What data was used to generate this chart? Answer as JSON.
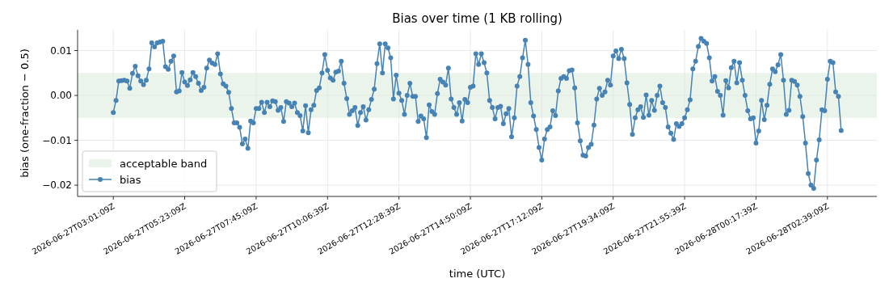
{
  "chart_data": {
    "type": "line",
    "title": "Bias over time (1 KB rolling)",
    "xlabel": "time (UTC)",
    "ylabel": "bias (one-fraction − 0.5)",
    "categories": [
      "2026-06-27T03:01:09Z",
      null,
      null,
      null,
      null,
      null,
      null,
      null,
      null,
      null,
      null,
      null,
      null,
      null,
      null,
      null,
      null,
      null,
      null,
      null,
      null,
      null,
      null,
      null,
      null,
      null,
      "2026-06-27T05:23:09Z",
      null,
      null,
      null,
      null,
      null,
      null,
      null,
      null,
      null,
      null,
      null,
      null,
      null,
      null,
      null,
      null,
      null,
      null,
      null,
      null,
      null,
      null,
      null,
      null,
      null,
      "2026-06-27T07:45:09Z",
      null,
      null,
      null,
      null,
      null,
      null,
      null,
      null,
      null,
      null,
      null,
      null,
      null,
      null,
      null,
      null,
      null,
      null,
      null,
      null,
      null,
      null,
      null,
      null,
      null,
      "2026-06-27T10:06:39Z",
      null,
      null,
      null,
      null,
      null,
      null,
      null,
      null,
      null,
      null,
      null,
      null,
      null,
      null,
      null,
      null,
      null,
      null,
      null,
      null,
      null,
      null,
      null,
      null,
      null,
      "2026-06-27T12:28:39Z",
      null,
      null,
      null,
      null,
      null,
      null,
      null,
      null,
      null,
      null,
      null,
      null,
      null,
      null,
      null,
      null,
      null,
      null,
      null,
      null,
      null,
      null,
      null,
      null,
      null,
      "2026-06-27T14:50:09Z",
      null,
      null,
      null,
      null,
      null,
      null,
      null,
      null,
      null,
      null,
      null,
      null,
      null,
      null,
      null,
      null,
      null,
      null,
      null,
      null,
      null,
      null,
      null,
      null,
      null,
      "2026-06-27T17:12:09Z",
      null,
      null,
      null,
      null,
      null,
      null,
      null,
      null,
      null,
      null,
      null,
      null,
      null,
      null,
      null,
      null,
      null,
      null,
      null,
      null,
      null,
      null,
      null,
      null,
      null,
      "2026-06-27T19:34:09Z",
      null,
      null,
      null,
      null,
      null,
      null,
      null,
      null,
      null,
      null,
      null,
      null,
      null,
      null,
      null,
      null,
      null,
      null,
      null,
      null,
      null,
      null,
      null,
      null,
      null,
      "2026-06-27T21:55:39Z",
      null,
      null,
      null,
      null,
      null,
      null,
      null,
      null,
      null,
      null,
      null,
      null,
      null,
      null,
      null,
      null,
      null,
      null,
      null,
      null,
      null,
      null,
      null,
      null,
      null,
      "2026-06-28T00:17:39Z",
      null,
      null,
      null,
      null,
      null,
      null,
      null,
      null,
      null,
      null,
      null,
      null,
      null,
      null,
      null,
      null,
      null,
      null,
      null,
      null,
      null,
      null,
      null,
      null,
      null,
      "2026-06-28T02:39:09Z",
      null,
      null,
      null,
      null,
      null
    ],
    "series": [
      {
        "name": "bias",
        "color": "#4682b4",
        "values": [
          -0.0038,
          -0.0011,
          0.0032,
          0.0033,
          0.0034,
          0.0032,
          0.0016,
          0.0049,
          0.0065,
          0.0044,
          0.0032,
          0.0024,
          0.0034,
          0.0059,
          0.0117,
          0.0108,
          0.0117,
          0.0119,
          0.0121,
          0.0064,
          0.0058,
          0.0076,
          0.0088,
          0.0008,
          0.001,
          0.0051,
          0.003,
          0.0022,
          0.0035,
          0.0051,
          0.0042,
          0.0027,
          0.0011,
          0.0018,
          0.0061,
          0.0079,
          0.0072,
          0.0069,
          0.0093,
          0.0048,
          0.0026,
          0.0021,
          0.0007,
          -0.0029,
          -0.0061,
          -0.0061,
          -0.0071,
          -0.0108,
          -0.0097,
          -0.0118,
          -0.0057,
          -0.0061,
          -0.0029,
          -0.0029,
          -0.0015,
          -0.0038,
          -0.0015,
          -0.0025,
          -0.0012,
          -0.0014,
          -0.0033,
          -0.0027,
          -0.0058,
          -0.0014,
          -0.0017,
          -0.0025,
          -0.0017,
          -0.0038,
          -0.0045,
          -0.0079,
          -0.0023,
          -0.0083,
          -0.0032,
          -0.0022,
          0.0011,
          0.0017,
          0.005,
          0.0091,
          0.0056,
          0.0039,
          0.0034,
          0.0052,
          0.0054,
          0.0076,
          0.0027,
          -0.0007,
          -0.0042,
          -0.0034,
          -0.0027,
          -0.0067,
          -0.0038,
          -0.0025,
          -0.0055,
          -0.0032,
          -0.0009,
          0.0014,
          0.0071,
          0.0115,
          0.005,
          0.0115,
          0.0106,
          0.0084,
          -0.0008,
          0.0045,
          0.0005,
          -0.0011,
          -0.0042,
          0,
          0.0027,
          -0.0002,
          -0.0002,
          -0.0058,
          -0.0046,
          -0.0052,
          -0.0094,
          -0.0021,
          -0.0036,
          -0.0042,
          0.0004,
          0.0036,
          0.003,
          0.0023,
          0.0061,
          -0.0008,
          -0.0027,
          -0.0042,
          -0.0016,
          -0.0057,
          -0.0009,
          -0.0016,
          0.0018,
          0.0021,
          0.0093,
          0.0069,
          0.0093,
          0.0073,
          0.005,
          -0.0011,
          -0.0027,
          -0.0052,
          -0.0027,
          -0.0024,
          -0.0063,
          -0.0041,
          -0.0029,
          -0.0092,
          -0.005,
          0.0021,
          0.0042,
          0.0084,
          0.0123,
          0.0069,
          -0.0016,
          -0.0046,
          -0.0076,
          -0.0116,
          -0.0144,
          -0.0097,
          -0.0076,
          -0.007,
          -0.0034,
          -0.0045,
          0.001,
          0.0038,
          0.0042,
          0.0038,
          0.0055,
          0.0057,
          0.0017,
          -0.0061,
          -0.0101,
          -0.0133,
          -0.0135,
          -0.0116,
          -0.0109,
          -0.0066,
          -0.0008,
          0.0016,
          0,
          0.0008,
          0.0034,
          0.0023,
          0.0088,
          0.0099,
          0.0082,
          0.0103,
          0.0082,
          0.0028,
          -0.002,
          -0.0087,
          -0.005,
          -0.0032,
          -0.0025,
          -0.0049,
          0.0001,
          -0.0044,
          -0.0011,
          -0.0033,
          0,
          0.0021,
          -0.0016,
          -0.0027,
          -0.007,
          -0.0084,
          -0.0098,
          -0.0063,
          -0.0069,
          -0.0063,
          -0.005,
          -0.0032,
          -0.001,
          0.0059,
          0.0076,
          0.0109,
          0.0127,
          0.0121,
          0.0116,
          0.0084,
          0.0032,
          0.0042,
          0.0009,
          0,
          -0.0044,
          0.0033,
          0.0017,
          0.0062,
          0.0076,
          0.0028,
          0.0073,
          0.0034,
          0,
          -0.0034,
          -0.0052,
          -0.005,
          -0.0106,
          -0.0079,
          -0.0011,
          -0.0054,
          -0.0022,
          0.0025,
          0.0059,
          0.0053,
          0.0068,
          0.0091,
          0.0034,
          -0.0042,
          -0.0033,
          0.0034,
          0.0031,
          0.0023,
          -0.0002,
          -0.0047,
          -0.0106,
          -0.0174,
          -0.02,
          -0.0207,
          -0.0144,
          -0.0099,
          -0.0032,
          -0.0034,
          0.0036,
          0.0076,
          0.0073,
          0.0008,
          -0.0002,
          -0.0078
        ]
      }
    ],
    "bands": [
      {
        "axis": "y",
        "from": -0.005,
        "to": 0.005,
        "label": "acceptable band",
        "color": "#eaf4ea"
      }
    ],
    "ylim": [
      -0.0225,
      0.0146
    ],
    "yticks": [
      {
        "value": -0.02,
        "label": "−0.02"
      },
      {
        "value": -0.01,
        "label": "−0.01"
      },
      {
        "value": 0,
        "label": "0.00"
      },
      {
        "value": 0.01,
        "label": "0.01"
      }
    ],
    "grid": true,
    "legend": "bottom left",
    "marker": "circle",
    "line_style": "solid"
  }
}
